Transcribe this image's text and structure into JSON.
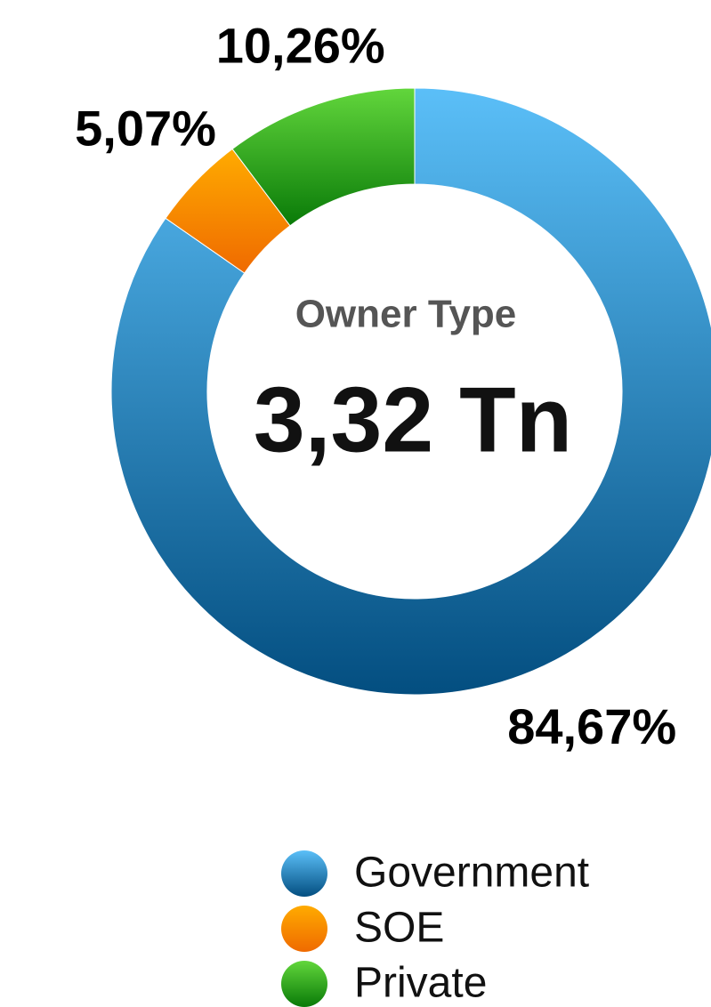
{
  "chart_data": {
    "type": "donut",
    "title": "Owner Type",
    "center_label": "3,32 Tn",
    "categories": [
      "Government",
      "SOE",
      "Private"
    ],
    "values": [
      84.67,
      5.07,
      10.26
    ],
    "value_labels": [
      "84,67%",
      "5,07%",
      "10,26%"
    ],
    "colors": [
      [
        "#5bbff8",
        "#034e80"
      ],
      [
        "#ffab00",
        "#ef6a00"
      ],
      [
        "#62d63c",
        "#097a08"
      ]
    ],
    "legend": "bottom"
  }
}
